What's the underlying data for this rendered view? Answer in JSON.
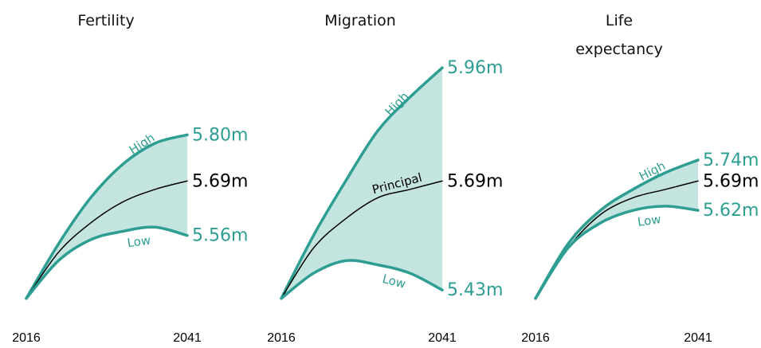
{
  "chart_data": [
    {
      "type": "line",
      "title": "Fertility",
      "x": [
        2016,
        2021,
        2026,
        2031,
        2036,
        2041
      ],
      "xlim": [
        2016,
        2041
      ],
      "xticks": [
        2016,
        2041
      ],
      "ylim": [
        5.4,
        6.0
      ],
      "fill_color": "#c4e4e0",
      "series": [
        {
          "name": "High",
          "color": "#2e9e92",
          "values": [
            5.41,
            5.54,
            5.65,
            5.73,
            5.78,
            5.8
          ],
          "value_labels": [
            null,
            null,
            null,
            null,
            null,
            "5.80m"
          ]
        },
        {
          "color": "#000000",
          "values": [
            5.41,
            5.52,
            5.59,
            5.64,
            5.67,
            5.69
          ],
          "value_labels": [
            null,
            null,
            null,
            null,
            null,
            "5.69m"
          ]
        },
        {
          "name": "Low",
          "color": "#2e9e92",
          "values": [
            5.41,
            5.5,
            5.55,
            5.57,
            5.58,
            5.56
          ],
          "value_labels": [
            null,
            null,
            null,
            null,
            null,
            "5.56m"
          ]
        }
      ]
    },
    {
      "type": "line",
      "title": "Migration",
      "x": [
        2016,
        2021,
        2026,
        2031,
        2036,
        2041
      ],
      "xlim": [
        2016,
        2041
      ],
      "xticks": [
        2016,
        2041
      ],
      "ylim": [
        5.4,
        6.0
      ],
      "fill_color": "#c4e4e0",
      "series": [
        {
          "name": "High",
          "color": "#2e9e92",
          "values": [
            5.41,
            5.56,
            5.69,
            5.81,
            5.89,
            5.96
          ],
          "value_labels": [
            null,
            null,
            null,
            null,
            null,
            "5.96m"
          ]
        },
        {
          "name": "Principal",
          "color": "#000000",
          "values": [
            5.41,
            5.53,
            5.6,
            5.65,
            5.67,
            5.69
          ],
          "value_labels": [
            null,
            null,
            null,
            null,
            null,
            "5.69m"
          ]
        },
        {
          "name": "Low",
          "color": "#2e9e92",
          "values": [
            5.41,
            5.47,
            5.5,
            5.49,
            5.47,
            5.43
          ],
          "value_labels": [
            null,
            null,
            null,
            null,
            null,
            "5.43m"
          ]
        }
      ]
    },
    {
      "type": "line",
      "title": "Life expectancy",
      "x": [
        2016,
        2021,
        2026,
        2031,
        2036,
        2041
      ],
      "xlim": [
        2016,
        2041
      ],
      "xticks": [
        2016,
        2041
      ],
      "ylim": [
        5.4,
        6.0
      ],
      "fill_color": "#c4e4e0",
      "series": [
        {
          "name": "High",
          "color": "#2e9e92",
          "values": [
            5.41,
            5.54,
            5.62,
            5.67,
            5.71,
            5.74
          ],
          "value_labels": [
            null,
            null,
            null,
            null,
            null,
            "5.74m"
          ]
        },
        {
          "color": "#000000",
          "values": [
            5.41,
            5.53,
            5.61,
            5.65,
            5.67,
            5.69
          ],
          "value_labels": [
            null,
            null,
            null,
            null,
            null,
            "5.69m"
          ]
        },
        {
          "name": "Low",
          "color": "#2e9e92",
          "values": [
            5.41,
            5.53,
            5.59,
            5.62,
            5.63,
            5.62
          ],
          "value_labels": [
            null,
            null,
            null,
            null,
            null,
            "5.62m"
          ]
        }
      ]
    }
  ]
}
